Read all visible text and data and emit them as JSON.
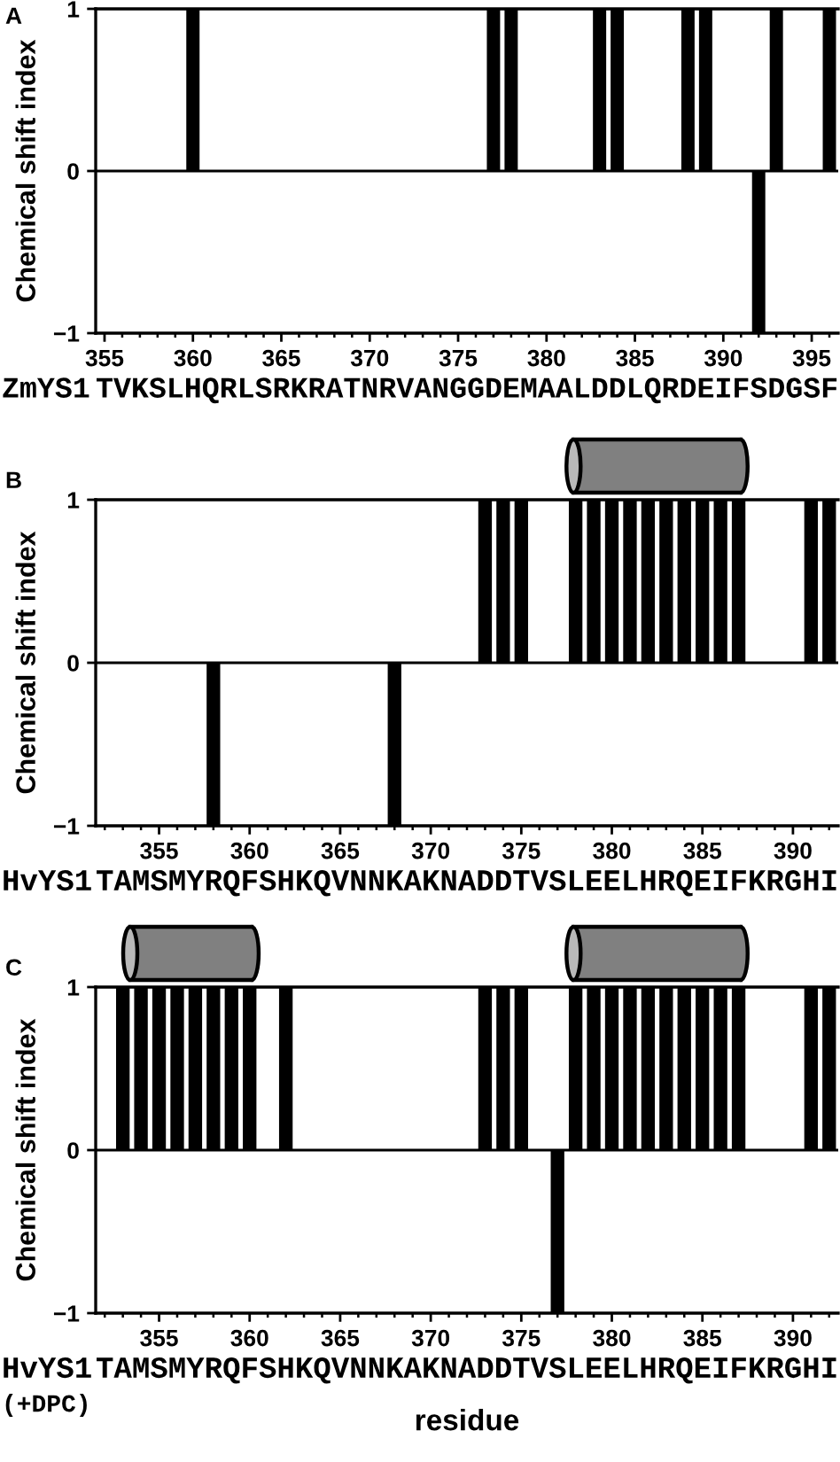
{
  "chart_data": [
    {
      "type": "bar",
      "title": "A",
      "ylabel": "Chemical shift index",
      "annotations": [
        "ZmYS1",
        "TVKSLHQRLSRKRATNRVANGGDEMAALDDLQRDEIFSDGSF"
      ],
      "x": [
        360,
        377,
        378,
        383,
        384,
        388,
        389,
        392,
        393,
        396
      ],
      "values": [
        1,
        1,
        1,
        1,
        1,
        1,
        1,
        -1,
        1,
        1
      ],
      "color": "#000000",
      "xlim": [
        354.5,
        396.5
      ],
      "xticks": [
        355,
        {
          "value": 356,
          "label": null
        },
        {
          "value": 357,
          "label": null
        },
        {
          "value": 358,
          "label": null
        },
        {
          "value": 359,
          "label": null
        },
        360,
        {
          "value": 361,
          "label": null
        },
        {
          "value": 362,
          "label": null
        },
        {
          "value": 363,
          "label": null
        },
        {
          "value": 364,
          "label": null
        },
        365,
        {
          "value": 366,
          "label": null
        },
        {
          "value": 367,
          "label": null
        },
        {
          "value": 368,
          "label": null
        },
        {
          "value": 369,
          "label": null
        },
        370,
        {
          "value": 371,
          "label": null
        },
        {
          "value": 372,
          "label": null
        },
        {
          "value": 373,
          "label": null
        },
        {
          "value": 374,
          "label": null
        },
        375,
        {
          "value": 376,
          "label": null
        },
        {
          "value": 377,
          "label": null
        },
        {
          "value": 378,
          "label": null
        },
        {
          "value": 379,
          "label": null
        },
        380,
        {
          "value": 381,
          "label": null
        },
        {
          "value": 382,
          "label": null
        },
        {
          "value": 383,
          "label": null
        },
        {
          "value": 384,
          "label": null
        },
        385,
        {
          "value": 386,
          "label": null
        },
        {
          "value": 387,
          "label": null
        },
        {
          "value": 388,
          "label": null
        },
        {
          "value": 389,
          "label": null
        },
        390,
        {
          "value": 391,
          "label": null
        },
        {
          "value": 392,
          "label": null
        },
        {
          "value": 393,
          "label": null
        },
        {
          "value": 394,
          "label": null
        },
        395,
        {
          "value": 396,
          "label": null
        }
      ],
      "ylim": [
        -1,
        1
      ],
      "yticks": [
        -1,
        0,
        1
      ],
      "ref_lines": [
        {
          "axis": "y",
          "value": 0
        }
      ]
    },
    {
      "type": "bar",
      "title": "B",
      "ylabel": "Chemical shift index",
      "annotations": [
        "HvYS1",
        "TAMSMYRQFSHKQVNNKAKNADDTVSLEELHRQEIFKRGHI"
      ],
      "x": [
        358,
        368,
        373,
        374,
        375,
        378,
        379,
        380,
        381,
        382,
        383,
        384,
        385,
        386,
        387,
        391,
        392
      ],
      "values": [
        -1,
        -1,
        1,
        1,
        1,
        1,
        1,
        1,
        1,
        1,
        1,
        1,
        1,
        1,
        1,
        1,
        1
      ],
      "color": "#000000",
      "xlim": [
        351.5,
        392.5
      ],
      "xticks": [
        {
          "value": 352,
          "label": null
        },
        {
          "value": 353,
          "label": null
        },
        {
          "value": 354,
          "label": null
        },
        355,
        {
          "value": 356,
          "label": null
        },
        {
          "value": 357,
          "label": null
        },
        {
          "value": 358,
          "label": null
        },
        {
          "value": 359,
          "label": null
        },
        360,
        {
          "value": 361,
          "label": null
        },
        {
          "value": 362,
          "label": null
        },
        {
          "value": 363,
          "label": null
        },
        {
          "value": 364,
          "label": null
        },
        365,
        {
          "value": 366,
          "label": null
        },
        {
          "value": 367,
          "label": null
        },
        {
          "value": 368,
          "label": null
        },
        {
          "value": 369,
          "label": null
        },
        370,
        {
          "value": 371,
          "label": null
        },
        {
          "value": 372,
          "label": null
        },
        {
          "value": 373,
          "label": null
        },
        {
          "value": 374,
          "label": null
        },
        375,
        {
          "value": 376,
          "label": null
        },
        {
          "value": 377,
          "label": null
        },
        {
          "value": 378,
          "label": null
        },
        {
          "value": 379,
          "label": null
        },
        380,
        {
          "value": 381,
          "label": null
        },
        {
          "value": 382,
          "label": null
        },
        {
          "value": 383,
          "label": null
        },
        {
          "value": 384,
          "label": null
        },
        385,
        {
          "value": 386,
          "label": null
        },
        {
          "value": 387,
          "label": null
        },
        {
          "value": 388,
          "label": null
        },
        {
          "value": 389,
          "label": null
        },
        390,
        {
          "value": 391,
          "label": null
        },
        {
          "value": 392,
          "label": null
        }
      ],
      "ylim": [
        -1,
        1
      ],
      "yticks": [
        -1,
        0,
        1
      ],
      "ref_lines": [
        {
          "axis": "y",
          "value": 0
        }
      ]
    },
    {
      "type": "bar",
      "title": "C",
      "ylabel": "Chemical shift index",
      "xlabel": "residue",
      "annotations": [
        "HvYS1",
        "TAMSMYRQFSHKQVNNKAKNADDTVSLEELHRQEIFKRGHI",
        "(+DPC)"
      ],
      "x": [
        353,
        354,
        355,
        356,
        357,
        358,
        359,
        360,
        362,
        373,
        374,
        375,
        377,
        378,
        379,
        380,
        381,
        382,
        383,
        384,
        385,
        386,
        387,
        391,
        392
      ],
      "values": [
        1,
        1,
        1,
        1,
        1,
        1,
        1,
        1,
        1,
        1,
        1,
        1,
        -1,
        1,
        1,
        1,
        1,
        1,
        1,
        1,
        1,
        1,
        1,
        1,
        1
      ],
      "color": "#000000",
      "xlim": [
        351.5,
        392.5
      ],
      "xticks": [
        {
          "value": 352,
          "label": null
        },
        {
          "value": 353,
          "label": null
        },
        {
          "value": 354,
          "label": null
        },
        355,
        {
          "value": 356,
          "label": null
        },
        {
          "value": 357,
          "label": null
        },
        {
          "value": 358,
          "label": null
        },
        {
          "value": 359,
          "label": null
        },
        360,
        {
          "value": 361,
          "label": null
        },
        {
          "value": 362,
          "label": null
        },
        {
          "value": 363,
          "label": null
        },
        {
          "value": 364,
          "label": null
        },
        365,
        {
          "value": 366,
          "label": null
        },
        {
          "value": 367,
          "label": null
        },
        {
          "value": 368,
          "label": null
        },
        {
          "value": 369,
          "label": null
        },
        370,
        {
          "value": 371,
          "label": null
        },
        {
          "value": 372,
          "label": null
        },
        {
          "value": 373,
          "label": null
        },
        {
          "value": 374,
          "label": null
        },
        375,
        {
          "value": 376,
          "label": null
        },
        {
          "value": 377,
          "label": null
        },
        {
          "value": 378,
          "label": null
        },
        {
          "value": 379,
          "label": null
        },
        380,
        {
          "value": 381,
          "label": null
        },
        {
          "value": 382,
          "label": null
        },
        {
          "value": 383,
          "label": null
        },
        {
          "value": 384,
          "label": null
        },
        385,
        {
          "value": 386,
          "label": null
        },
        {
          "value": 387,
          "label": null
        },
        {
          "value": 388,
          "label": null
        },
        {
          "value": 389,
          "label": null
        },
        390,
        {
          "value": 391,
          "label": null
        },
        {
          "value": 392,
          "label": null
        }
      ],
      "ylim": [
        -1,
        1
      ],
      "yticks": [
        -1,
        0,
        1
      ],
      "ref_lines": [
        {
          "axis": "y",
          "value": 0
        }
      ]
    }
  ]
}
